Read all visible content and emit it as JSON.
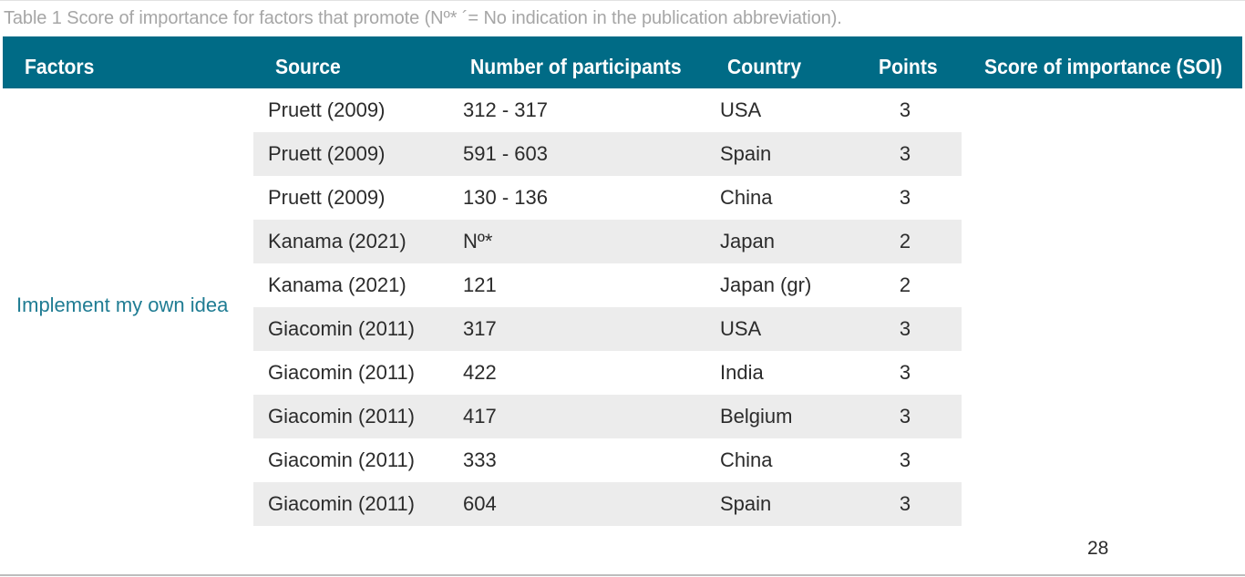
{
  "caption": "Table 1 Score of importance for factors that promote (Nº* ´= No indication in the publication abbreviation).",
  "header": {
    "factors": "Factors",
    "source": "Source",
    "participants": "Number of participants",
    "country": "Country",
    "points": "Points",
    "soi": "Score of importance (SOI)"
  },
  "factor": "Implement my own idea",
  "rows": [
    {
      "source": "Pruett (2009)",
      "participants": "312 - 317",
      "country": "USA",
      "points": "3"
    },
    {
      "source": "Pruett (2009)",
      "participants": "591 - 603",
      "country": "Spain",
      "points": "3"
    },
    {
      "source": "Pruett (2009)",
      "participants": "130 - 136",
      "country": "China",
      "points": "3"
    },
    {
      "source": "Kanama (2021)",
      "participants": "Nº*",
      "country": "Japan",
      "points": "2"
    },
    {
      "source": "Kanama (2021)",
      "participants": "121",
      "country": "Japan (gr)",
      "points": "2"
    },
    {
      "source": "Giacomin (2011)",
      "participants": "317",
      "country": "USA",
      "points": "3"
    },
    {
      "source": "Giacomin (2011)",
      "participants": "422",
      "country": "India",
      "points": "3"
    },
    {
      "source": "Giacomin (2011)",
      "participants": "417",
      "country": "Belgium",
      "points": "3"
    },
    {
      "source": "Giacomin (2011)",
      "participants": "333",
      "country": "China",
      "points": "3"
    },
    {
      "source": "Giacomin (2011)",
      "participants": "604",
      "country": "Spain",
      "points": "3"
    }
  ],
  "page_number": "28",
  "colors": {
    "header_bg": "#006b86",
    "factor_text": "#1f7c93",
    "row_shade": "#ececec",
    "caption_text": "#a6a6a6"
  }
}
